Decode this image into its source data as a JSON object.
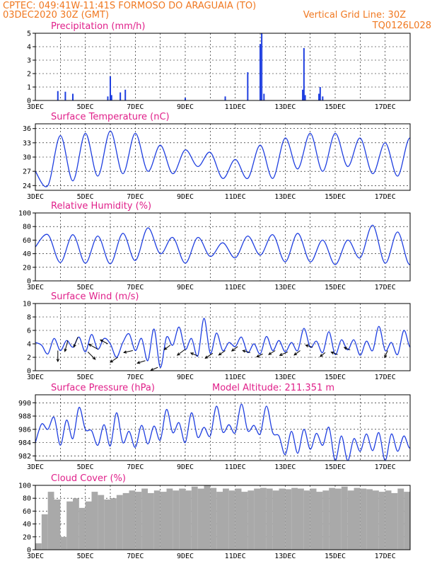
{
  "header": {
    "line1": "CPTEC:   049:41W-11:41S   FORMOSO DO ARAGUAIA (TO)",
    "line2_left": "03DEC2020 30Z (GMT)",
    "line2_right": "Vertical Grid Line: 30Z",
    "code": "TQ0126L028",
    "model_altitude": "Model Altitude: 211.351 m"
  },
  "colors": {
    "header": "#f07820",
    "title": "#e0208a",
    "series": "#1f3fe0",
    "cloud": "#a9a9a9",
    "wind_arrow": "#000000"
  },
  "date_ticks": [
    "3DEC",
    "5DEC",
    "7DEC",
    "9DEC",
    "11DEC",
    "13DEC",
    "15DEC",
    "17DEC"
  ],
  "chart_data": [
    {
      "id": "precip",
      "type": "bar",
      "title": "Precipitation (mm/h)",
      "ylim": [
        0,
        5
      ],
      "yticks": [
        0,
        1,
        2,
        3,
        4,
        5
      ],
      "x_days": [
        0.9,
        1.2,
        1.5,
        2.9,
        3.0,
        3.05,
        3.4,
        3.6,
        6.0,
        7.6,
        8.5,
        9.0,
        9.06,
        9.15,
        10.7,
        10.75,
        10.8,
        11.35,
        11.4,
        11.5
      ],
      "values": [
        0.7,
        0.65,
        0.5,
        0.3,
        1.8,
        0.4,
        0.6,
        0.8,
        0.2,
        0.3,
        2.1,
        4.2,
        5.0,
        0.5,
        0.8,
        3.9,
        0.4,
        0.5,
        1.0,
        0.3
      ]
    },
    {
      "id": "temp",
      "type": "line",
      "title": "Surface Temperature (nC)",
      "ylim": [
        23,
        37
      ],
      "yticks": [
        24,
        27,
        30,
        33,
        36
      ],
      "period_days": 0.5,
      "values": [
        27,
        24,
        34.5,
        25,
        35,
        26,
        35.5,
        26.5,
        35,
        27,
        32.5,
        26.5,
        31.5,
        28,
        31,
        25.5,
        29.5,
        25.5,
        32.5,
        25.5,
        34,
        27.5,
        35,
        27,
        35,
        28,
        34,
        26.5,
        33,
        26,
        34,
        24.5,
        34,
        26.5,
        33,
        25.5,
        33.5,
        26.5,
        35
      ]
    },
    {
      "id": "rh",
      "type": "line",
      "title": "Relative Humidity (%)",
      "ylim": [
        0,
        100
      ],
      "yticks": [
        0,
        20,
        40,
        60,
        80,
        100
      ],
      "period_days": 0.5,
      "values": [
        50,
        68,
        27,
        68,
        26,
        66,
        25,
        70,
        30,
        78,
        40,
        64,
        26,
        64,
        36,
        56,
        34,
        66,
        38,
        68,
        28,
        70,
        28,
        60,
        24,
        60,
        34,
        82,
        26,
        72,
        24,
        88,
        20,
        74,
        32,
        72,
        28,
        68,
        35
      ]
    },
    {
      "id": "wind",
      "type": "line",
      "title": "Surface Wind (m/s)",
      "ylim": [
        0,
        10
      ],
      "yticks": [
        0,
        2,
        4,
        6,
        8,
        10
      ],
      "period_days": 0.25,
      "values": [
        4.2,
        3.8,
        2.5,
        4.8,
        3.0,
        4.5,
        3.5,
        5.0,
        2.8,
        5.4,
        3.2,
        4.8,
        4.0,
        2.0,
        4.2,
        5.5,
        3.0,
        4.8,
        1.5,
        6.2,
        0.5,
        5.0,
        3.8,
        6.5,
        3.2,
        4.8,
        2.2,
        7.8,
        2.6,
        5.6,
        3.0,
        4.2,
        3.6,
        5.0,
        2.7,
        4.0,
        2.5,
        5.1,
        3.0,
        4.5,
        2.8,
        4.2,
        3.0,
        6.3,
        3.5,
        4.4,
        2.7,
        5.8,
        2.4,
        4.6,
        3.1,
        4.6,
        2.3,
        4.4,
        3.0,
        6.6,
        3.0,
        4.2,
        2.4,
        6.0,
        3.5,
        5.0,
        2.0,
        5.6,
        3.0,
        4.8,
        3.6,
        5.2,
        3.8,
        4.0,
        2.8,
        3.5,
        3.6,
        4.9,
        2.6,
        4.0,
        2.3,
        6.1,
        2.5,
        4.0,
        4.4,
        4.0,
        3.6,
        5.4,
        2.5,
        3.0,
        1.2,
        3.6,
        4.0,
        5.0,
        3.0,
        4.6,
        2.4,
        4.2,
        2.9,
        4.5,
        1.2,
        3.7,
        3.1,
        3.7,
        3.5,
        3.8,
        3.6,
        3.6
      ],
      "arrows": [
        {
          "day": 0.9,
          "u": 0.0,
          "v": -2.2
        },
        {
          "day": 1.3,
          "u": -0.6,
          "v": -2.2
        },
        {
          "day": 1.7,
          "u": -0.8,
          "v": -2.0
        },
        {
          "day": 2.1,
          "u": 1.5,
          "v": -1.5
        },
        {
          "day": 2.5,
          "u": -1.8,
          "v": 1.0
        },
        {
          "day": 2.9,
          "u": -1.5,
          "v": 0.8
        },
        {
          "day": 3.3,
          "u": -1.5,
          "v": -1.0
        },
        {
          "day": 3.9,
          "u": -1.8,
          "v": -0.4
        },
        {
          "day": 4.4,
          "u": -1.6,
          "v": -0.5
        },
        {
          "day": 4.9,
          "u": -1.4,
          "v": -0.6
        },
        {
          "day": 5.4,
          "u": -1.2,
          "v": -0.9
        },
        {
          "day": 6.0,
          "u": -1.6,
          "v": -1.2
        },
        {
          "day": 6.5,
          "u": -1.4,
          "v": 0.6
        },
        {
          "day": 7.1,
          "u": -1.5,
          "v": -1.0
        },
        {
          "day": 7.6,
          "u": -1.3,
          "v": -0.9
        },
        {
          "day": 8.1,
          "u": -1.2,
          "v": -0.9
        },
        {
          "day": 8.6,
          "u": -1.5,
          "v": 0.4
        },
        {
          "day": 9.1,
          "u": -1.2,
          "v": -0.6
        },
        {
          "day": 9.6,
          "u": -1.3,
          "v": -0.8
        },
        {
          "day": 10.1,
          "u": -1.6,
          "v": -0.7
        },
        {
          "day": 10.6,
          "u": -1.2,
          "v": -0.9
        },
        {
          "day": 11.1,
          "u": -1.4,
          "v": 0.4
        },
        {
          "day": 11.6,
          "u": -1.0,
          "v": -0.8
        },
        {
          "day": 12.1,
          "u": -1.3,
          "v": 0.5
        },
        {
          "day": 12.6,
          "u": -1.2,
          "v": 0.5
        },
        {
          "day": 14.1,
          "u": -0.6,
          "v": -1.4
        }
      ]
    },
    {
      "id": "press",
      "type": "line",
      "title": "Surface Pressure (hPa)",
      "ylim": [
        981.3,
        991.2
      ],
      "yticks": [
        982,
        984,
        986,
        988,
        990
      ],
      "period_days": 0.25,
      "values": [
        984.0,
        986.8,
        986.0,
        987.8,
        983.6,
        987.4,
        984.6,
        989.3,
        986.0,
        985.8,
        983.6,
        986.7,
        983.5,
        988.5,
        984.0,
        985.7,
        983.3,
        986.6,
        983.8,
        986.5,
        984.4,
        989.0,
        985.5,
        987.0,
        984.0,
        988.5,
        984.8,
        986.3,
        985.0,
        989.5,
        985.6,
        986.7,
        985.5,
        989.8,
        985.8,
        986.6,
        985.3,
        989.5,
        985.5,
        985.0,
        982.2,
        985.7,
        982.4,
        986.0,
        983.0,
        985.4,
        983.6,
        986.3,
        981.3,
        985.0,
        981.3,
        984.6,
        982.7,
        985.3,
        982.8,
        985.5,
        981.3,
        985.3,
        982.7,
        985.0,
        983.2,
        986.4,
        981.4,
        984.7,
        981.4,
        984.3,
        982.4,
        984.3,
        981.4,
        984.5,
        981.4,
        984.7,
        981.3
      ],
      "model_altitude_m": 211.351
    },
    {
      "id": "cloud",
      "type": "area",
      "title": "Cloud Cover (%)",
      "ylim": [
        0,
        100
      ],
      "yticks": [
        0,
        20,
        40,
        60,
        80,
        100
      ],
      "step_days": 0.25,
      "values": [
        10,
        55,
        90,
        78,
        20,
        75,
        80,
        65,
        75,
        90,
        85,
        78,
        80,
        85,
        88,
        92,
        90,
        95,
        88,
        92,
        90,
        95,
        92,
        95,
        92,
        98,
        95,
        100,
        96,
        90,
        95,
        92,
        95,
        90,
        92,
        95,
        96,
        95,
        92,
        95,
        94,
        96,
        95,
        92,
        95,
        90,
        92,
        96,
        95,
        98,
        92,
        96,
        95,
        94,
        92,
        90,
        92,
        88,
        95,
        90,
        85,
        86,
        93,
        80,
        98,
        70,
        92,
        85,
        90,
        80,
        92,
        85
      ]
    }
  ]
}
